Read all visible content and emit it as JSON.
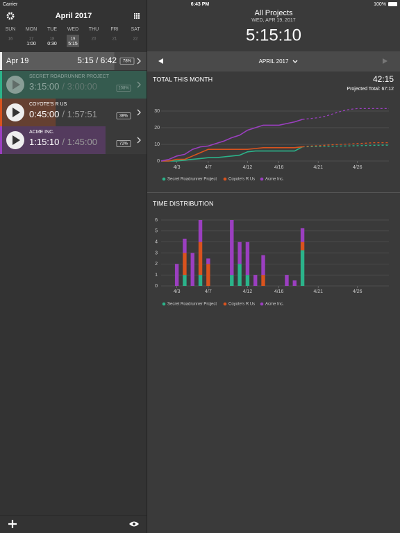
{
  "status_bar": {
    "carrier": "Carrier",
    "time": "6:43 PM",
    "battery": "100%"
  },
  "sidebar": {
    "title": "April 2017",
    "days": [
      {
        "weekday": "SUN",
        "date": 16,
        "hours": null
      },
      {
        "weekday": "MON",
        "date": 17,
        "hours": "1:00"
      },
      {
        "weekday": "TUE",
        "date": 18,
        "hours": "0:30"
      },
      {
        "weekday": "WED",
        "date": 19,
        "hours": "5:15",
        "selected": true
      },
      {
        "weekday": "THU",
        "date": 20,
        "hours": null
      },
      {
        "weekday": "FRI",
        "date": 21,
        "hours": null
      },
      {
        "weekday": "SAT",
        "date": 22,
        "hours": null
      }
    ],
    "today": {
      "label": "Apr 19",
      "time": "5:15 / 6:42",
      "percent": 78,
      "percent_label": "78%"
    },
    "projects": [
      {
        "name": "SECRET ROADRUNNER PROJECT",
        "elapsed": "3:15:00",
        "budget": "/ 3:00:00",
        "percent": 108,
        "percent_label": "108%",
        "color": "#2bb38a"
      },
      {
        "name": "COYOTE'S R US",
        "elapsed": "0:45:00",
        "budget": "/ 1:57:51",
        "percent": 38,
        "percent_label": "38%",
        "color": "#d9531e"
      },
      {
        "name": "ACME INC.",
        "elapsed": "1:15:10",
        "budget": "/ 1:45:00",
        "percent": 72,
        "percent_label": "72%",
        "color": "#9b3fc0"
      }
    ]
  },
  "detail": {
    "title": "All Projects",
    "date": "WED, APR 19, 2017",
    "time": "5:15:10",
    "month": "APRIL 2017"
  },
  "chart_data": [
    {
      "type": "line",
      "title": "TOTAL THIS MONTH",
      "summary": "42:15",
      "subtitle": "Projected Total: 67:12",
      "x": [
        1,
        2,
        3,
        4,
        5,
        6,
        7,
        8,
        9,
        10,
        11,
        12,
        13,
        14,
        15,
        16,
        17,
        18,
        19,
        20,
        21,
        22,
        23,
        24,
        25,
        26,
        27,
        28,
        29,
        30
      ],
      "xlim": [
        1,
        30
      ],
      "xticks": [
        {
          "value": 3,
          "label": "4/3"
        },
        {
          "value": 7,
          "label": "4/7"
        },
        {
          "value": 12,
          "label": "4/12"
        },
        {
          "value": 16,
          "label": "4/16"
        },
        {
          "value": 21,
          "label": "4/21"
        },
        {
          "value": 26,
          "label": "4/26"
        }
      ],
      "ylim": [
        0,
        33
      ],
      "yticks": [
        0,
        10,
        20,
        30
      ],
      "grid": true,
      "series": [
        {
          "name": "Secret Roadrunner Project",
          "color": "#2bb38a",
          "values": [
            0,
            0,
            0,
            0.5,
            1,
            1.5,
            2,
            2,
            2.5,
            3,
            3.5,
            5.5,
            6,
            6,
            6,
            6,
            6,
            6,
            8.5,
            null,
            null,
            null,
            null,
            null,
            null,
            null,
            null,
            null,
            null,
            null
          ],
          "projected": [
            null,
            null,
            null,
            null,
            null,
            null,
            null,
            null,
            null,
            null,
            null,
            null,
            null,
            null,
            null,
            null,
            null,
            null,
            8.5,
            8.6,
            8.7,
            8.8,
            8.9,
            9,
            9.1,
            9.2,
            9.3,
            9.4,
            9.5,
            9.5
          ]
        },
        {
          "name": "Coyote's R Us",
          "color": "#d9531e",
          "values": [
            0,
            0,
            1,
            1,
            3,
            5,
            7,
            7,
            7,
            7,
            7,
            7,
            7.5,
            8,
            8,
            8,
            8,
            8,
            8.5,
            null,
            null,
            null,
            null,
            null,
            null,
            null,
            null,
            null,
            null,
            null
          ],
          "projected": [
            null,
            null,
            null,
            null,
            null,
            null,
            null,
            null,
            null,
            null,
            null,
            null,
            null,
            null,
            null,
            null,
            null,
            null,
            8.5,
            9,
            9.2,
            9.5,
            9.8,
            10,
            10.2,
            10.5,
            10.7,
            11,
            11,
            11
          ]
        },
        {
          "name": "Acme Inc.",
          "color": "#9b3fc0",
          "values": [
            0,
            1,
            3,
            4,
            7,
            8.5,
            9,
            10.5,
            12,
            14,
            15.5,
            18.5,
            20,
            21.5,
            21.5,
            21.5,
            22.5,
            23.5,
            25,
            null,
            null,
            null,
            null,
            null,
            null,
            null,
            null,
            null,
            null,
            null
          ],
          "projected": [
            null,
            null,
            null,
            null,
            null,
            null,
            null,
            null,
            null,
            null,
            null,
            null,
            null,
            null,
            null,
            null,
            null,
            null,
            25,
            25.5,
            26,
            27,
            28.5,
            30,
            31,
            31.5,
            31.5,
            31.5,
            31.5,
            31.5
          ]
        }
      ]
    },
    {
      "type": "bar",
      "stacked": true,
      "title": "TIME DISTRIBUTION",
      "x": [
        3,
        4,
        5,
        6,
        7,
        10,
        11,
        12,
        13,
        14,
        17,
        18,
        19
      ],
      "xlim": [
        1,
        30
      ],
      "xticks": [
        {
          "value": 3,
          "label": "4/3"
        },
        {
          "value": 7,
          "label": "4/7"
        },
        {
          "value": 12,
          "label": "4/12"
        },
        {
          "value": 16,
          "label": "4/16"
        },
        {
          "value": 21,
          "label": "4/21"
        },
        {
          "value": 26,
          "label": "4/26"
        }
      ],
      "ylim": [
        0,
        6
      ],
      "yticks": [
        0,
        1,
        2,
        3,
        4,
        5,
        6
      ],
      "grid": true,
      "series": [
        {
          "name": "Secret Roadrunner Project",
          "color": "#2bb38a",
          "values": [
            0,
            1,
            0,
            1,
            0,
            1,
            2,
            1,
            0,
            0,
            0,
            0,
            3.25
          ]
        },
        {
          "name": "Coyote's R Us",
          "color": "#d9531e",
          "values": [
            0,
            2,
            0,
            3,
            2,
            0,
            0,
            0,
            0,
            1,
            0,
            0,
            0.75
          ]
        },
        {
          "name": "Acme Inc.",
          "color": "#9b3fc0",
          "values": [
            2,
            1.3,
            3,
            2,
            0.5,
            5,
            2,
            3,
            1,
            1.8,
            1,
            0.5,
            1.25
          ]
        }
      ]
    }
  ]
}
